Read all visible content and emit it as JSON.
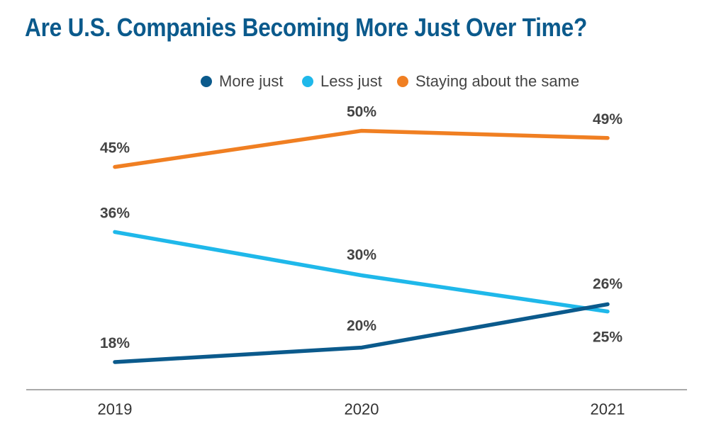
{
  "chart_data": {
    "type": "line",
    "title": "Are U.S. Companies Becoming More Just Over Time?",
    "xlabel": "",
    "ylabel": "",
    "categories": [
      "2019",
      "2020",
      "2021"
    ],
    "ylim": [
      10,
      55
    ],
    "grid": false,
    "legend_position": "top-center",
    "series": [
      {
        "name": "More just",
        "color": "#0b5a8c",
        "values": [
          18,
          20,
          26
        ],
        "labels": [
          "18%",
          "20%",
          "26%"
        ]
      },
      {
        "name": "Less just",
        "color": "#1fb8ea",
        "values": [
          36,
          30,
          25
        ],
        "labels": [
          "36%",
          "30%",
          "25%"
        ]
      },
      {
        "name": "Staying about the same",
        "color": "#f07f22",
        "values": [
          45,
          50,
          49
        ],
        "labels": [
          "45%",
          "50%",
          "49%"
        ]
      }
    ]
  }
}
